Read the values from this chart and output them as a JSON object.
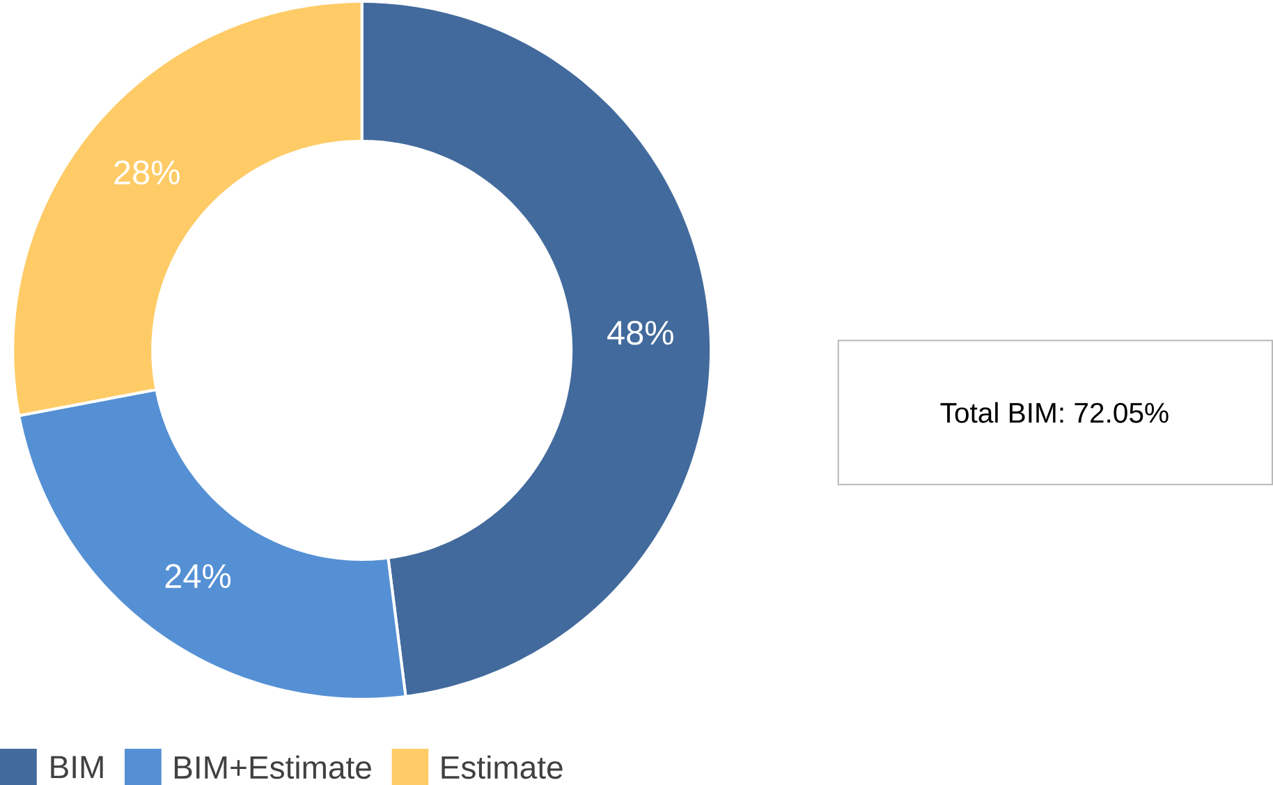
{
  "chart_data": {
    "type": "donut",
    "categories": [
      "BIM",
      "BIM+Estimate",
      "Estimate"
    ],
    "values": [
      48,
      24,
      28
    ],
    "colors": [
      "#426a9c",
      "#5590d4",
      "#fecb66"
    ],
    "value_labels": [
      "48%",
      "24%",
      "28%"
    ],
    "legend": "bottom left",
    "annotations": [
      "Total BIM: 72.05%"
    ]
  }
}
